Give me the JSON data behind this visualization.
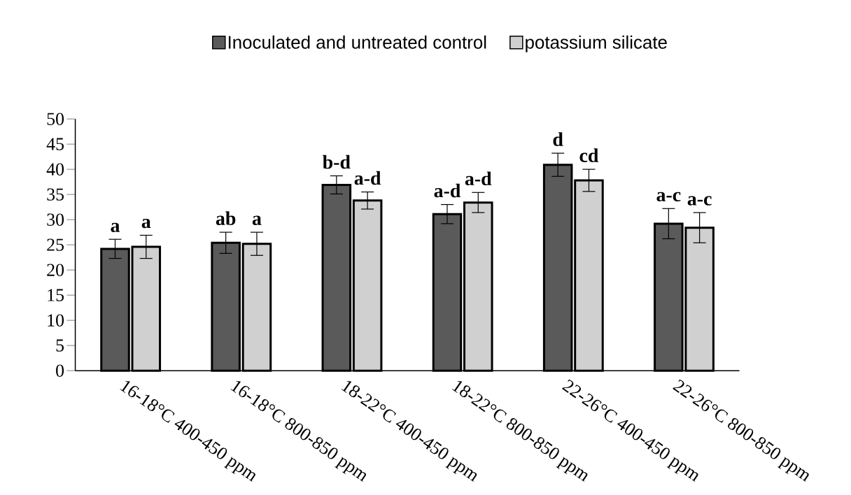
{
  "chart_data": {
    "type": "bar",
    "categories": [
      "16-18°C 400-450 ppm",
      "16-18°C 800-850 ppm",
      "18-22°C 400-450 ppm",
      "18-22°C 800-850 ppm",
      "22-26°C 400-450 ppm",
      "22-26°C 800-850 ppm"
    ],
    "series": [
      {
        "name": "Inoculated and untreated control",
        "color": "#5a5a5a",
        "values": [
          24.2,
          25.4,
          36.9,
          31.1,
          40.9,
          29.2
        ],
        "errors": [
          1.9,
          2.1,
          1.8,
          1.9,
          2.3,
          3.0
        ]
      },
      {
        "name": "potassium silicate",
        "color": "#d0d0d0",
        "values": [
          24.6,
          25.2,
          33.8,
          33.4,
          37.8,
          28.4
        ],
        "errors": [
          2.3,
          2.3,
          1.7,
          2.0,
          2.2,
          3.0
        ]
      }
    ],
    "ylim": [
      0,
      50
    ],
    "yticks": [
      0,
      5,
      10,
      15,
      20,
      25,
      30,
      35,
      40,
      45,
      50
    ],
    "legend": "top",
    "grid": false,
    "annotations": [
      "a",
      "a",
      "ab",
      "a",
      "b-d",
      "a-d",
      "a-d",
      "a-d",
      "d",
      "cd",
      "a-c",
      "a-c"
    ]
  }
}
